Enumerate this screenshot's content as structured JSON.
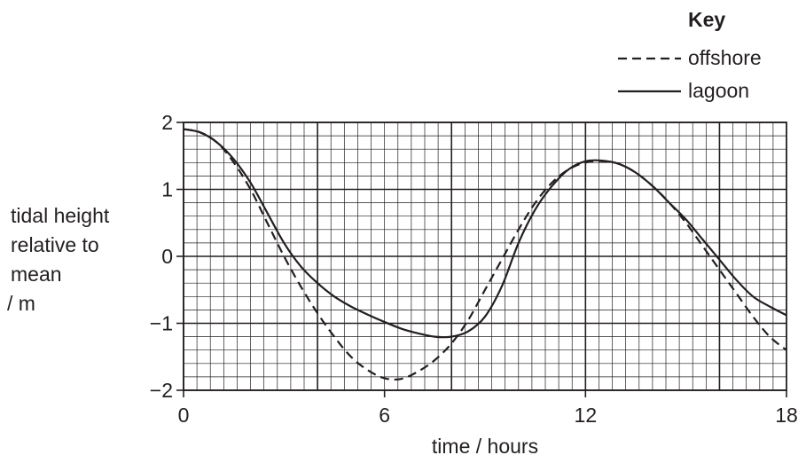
{
  "chart_data": {
    "type": "line",
    "xlabel": "time / hours",
    "ylabel": [
      "tidal height",
      "relative to",
      "mean",
      "/ m"
    ],
    "xlim": [
      0,
      18
    ],
    "ylim": [
      -2,
      2
    ],
    "x_ticks": [
      0,
      6,
      12,
      18
    ],
    "y_ticks": [
      2,
      1,
      0,
      -1,
      -2
    ],
    "y_tick_labels": [
      "2",
      "1",
      "0",
      "−1",
      "−2"
    ],
    "grid": {
      "minor_x": 0.4,
      "minor_y": 0.2,
      "major_x": 4,
      "major_y": 1
    },
    "legend": {
      "title": "Key",
      "position": "top-right",
      "entries": [
        {
          "label": "offshore",
          "style": "dashed"
        },
        {
          "label": "lagoon",
          "style": "solid"
        }
      ]
    },
    "series": [
      {
        "name": "offshore",
        "style": "dashed",
        "x": [
          0,
          0.5,
          1,
          1.5,
          2,
          2.5,
          3,
          3.5,
          4,
          4.5,
          5,
          5.5,
          6,
          6.5,
          7,
          7.5,
          8,
          8.5,
          9,
          9.5,
          10,
          10.5,
          11,
          11.5,
          12,
          12.5,
          13,
          13.5,
          14,
          14.5,
          15,
          15.5,
          16,
          16.5,
          17,
          17.5,
          18
        ],
        "y": [
          1.9,
          1.85,
          1.7,
          1.4,
          1.0,
          0.5,
          0.0,
          -0.45,
          -0.85,
          -1.2,
          -1.5,
          -1.7,
          -1.82,
          -1.83,
          -1.72,
          -1.55,
          -1.3,
          -0.95,
          -0.5,
          -0.05,
          0.4,
          0.8,
          1.1,
          1.3,
          1.4,
          1.42,
          1.38,
          1.25,
          1.05,
          0.8,
          0.5,
          0.15,
          -0.2,
          -0.55,
          -0.9,
          -1.2,
          -1.4
        ]
      },
      {
        "name": "lagoon",
        "style": "solid",
        "x": [
          0,
          0.5,
          1,
          1.5,
          2,
          2.5,
          3,
          3.5,
          4,
          4.5,
          5,
          5.5,
          6,
          6.5,
          7,
          7.5,
          8,
          8.5,
          9,
          9.5,
          10,
          10.5,
          11,
          11.5,
          12,
          12.5,
          13,
          13.5,
          14,
          14.5,
          15,
          15.5,
          16,
          16.5,
          17,
          17.5,
          18
        ],
        "y": [
          1.9,
          1.85,
          1.7,
          1.45,
          1.1,
          0.65,
          0.2,
          -0.15,
          -0.4,
          -0.6,
          -0.75,
          -0.87,
          -0.98,
          -1.08,
          -1.15,
          -1.2,
          -1.2,
          -1.12,
          -0.9,
          -0.45,
          0.2,
          0.7,
          1.05,
          1.3,
          1.42,
          1.43,
          1.38,
          1.25,
          1.05,
          0.8,
          0.55,
          0.25,
          -0.05,
          -0.35,
          -0.6,
          -0.75,
          -0.88
        ]
      }
    ]
  }
}
